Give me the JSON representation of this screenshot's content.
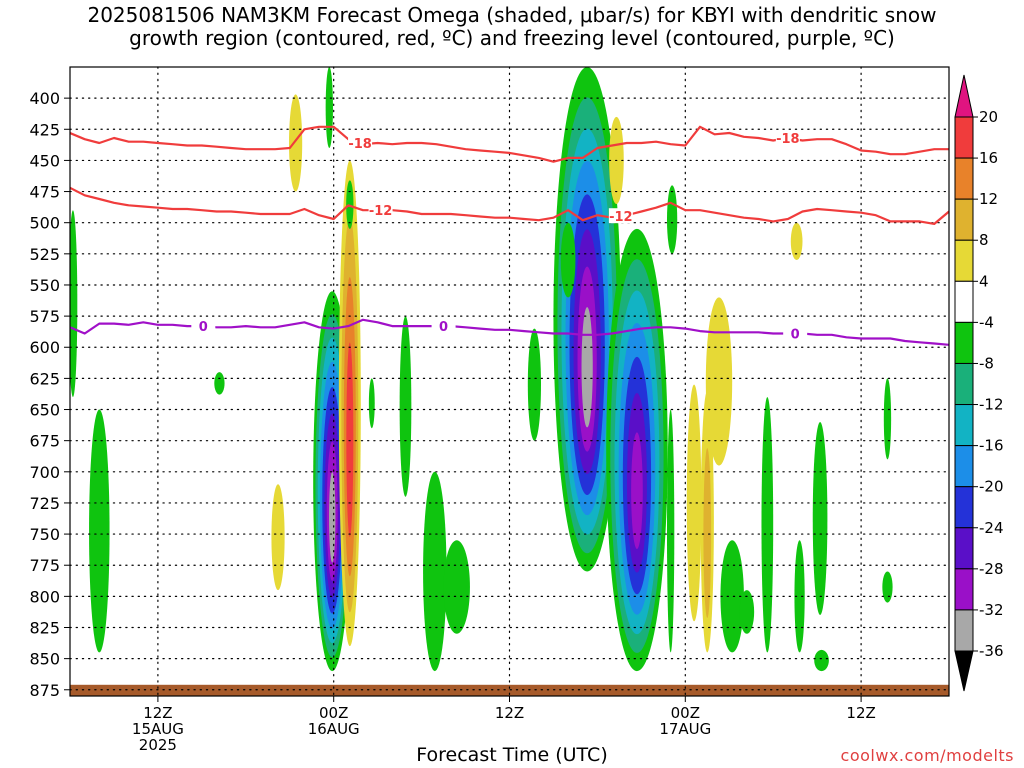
{
  "chart_data": {
    "type": "heatmap",
    "title_lines": [
      "2025081506 NAM3KM Forecast Omega (shaded, μbar/s) for KBYI with dendritic snow",
      "growth region (contoured, red, ºC) and freezing level (contoured, purple, ºC)"
    ],
    "xlabel": "Forecast Time (UTC)",
    "ylabel": "",
    "credit": "coolwx.com/modelts",
    "y_axis": {
      "ticks": [
        400,
        425,
        450,
        475,
        500,
        525,
        550,
        575,
        600,
        625,
        650,
        675,
        700,
        725,
        750,
        775,
        800,
        825,
        850,
        875
      ],
      "range": [
        375,
        880
      ],
      "units": "hPa",
      "reversed": true
    },
    "x_axis": {
      "range_hours": [
        0,
        60
      ],
      "ticks": [
        {
          "hour": 6,
          "lines": [
            "12Z",
            "15AUG",
            "2025"
          ]
        },
        {
          "hour": 18,
          "lines": [
            "00Z",
            "16AUG"
          ]
        },
        {
          "hour": 30,
          "lines": [
            "12Z"
          ]
        },
        {
          "hour": 42,
          "lines": [
            "00Z",
            "17AUG"
          ]
        },
        {
          "hour": 54,
          "lines": [
            "12Z"
          ]
        }
      ]
    },
    "grid": "dotted",
    "colorbar": {
      "labels": [
        "20",
        "16",
        "12",
        "8",
        "4",
        "-4",
        "-8",
        "-12",
        "-16",
        "-20",
        "-24",
        "-28",
        "-32",
        "-36"
      ],
      "bins": [
        {
          "range": [
            16,
            20
          ],
          "color": "#f03c3c"
        },
        {
          "range": [
            12,
            16
          ],
          "color": "#e8822a"
        },
        {
          "range": [
            8,
            12
          ],
          "color": "#dfb22f"
        },
        {
          "range": [
            4,
            8
          ],
          "color": "#e6d936"
        },
        {
          "range": [
            -4,
            4
          ],
          "color": "#ffffff"
        },
        {
          "range": [
            -8,
            -4
          ],
          "color": "#0fc40f"
        },
        {
          "range": [
            -12,
            -8
          ],
          "color": "#1ab07a"
        },
        {
          "range": [
            -16,
            -12
          ],
          "color": "#12b3c4"
        },
        {
          "range": [
            -20,
            -16
          ],
          "color": "#1c8ee8"
        },
        {
          "range": [
            -24,
            -20
          ],
          "color": "#2432d8"
        },
        {
          "range": [
            -28,
            -24
          ],
          "color": "#5a0fc8"
        },
        {
          "range": [
            -32,
            -28
          ],
          "color": "#9a10c8"
        },
        {
          "range": [
            -36,
            -32
          ],
          "color": "#a8a8a8"
        }
      ],
      "top_arrow_color": "#e01480",
      "bottom_arrow_color": "#000000"
    },
    "series": [
      {
        "name": "-18",
        "color": "#f03c3c",
        "label_hours": [
          19.8,
          49.0
        ],
        "points": [
          [
            0,
            428
          ],
          [
            1,
            433
          ],
          [
            2,
            436
          ],
          [
            3,
            432
          ],
          [
            4,
            435
          ],
          [
            5,
            435
          ],
          [
            6,
            436
          ],
          [
            7,
            437
          ],
          [
            8,
            438
          ],
          [
            9,
            438
          ],
          [
            10,
            439
          ],
          [
            11,
            440
          ],
          [
            12,
            441
          ],
          [
            13,
            441
          ],
          [
            14,
            441
          ],
          [
            15,
            440
          ],
          [
            16,
            425
          ],
          [
            17,
            423
          ],
          [
            18,
            423
          ],
          [
            19,
            433
          ],
          [
            20,
            437
          ],
          [
            21,
            436
          ],
          [
            22,
            437
          ],
          [
            23,
            436
          ],
          [
            24,
            436
          ],
          [
            25,
            437
          ],
          [
            26,
            439
          ],
          [
            27,
            441
          ],
          [
            28,
            442
          ],
          [
            29,
            443
          ],
          [
            30,
            444
          ],
          [
            31,
            446
          ],
          [
            32,
            448
          ],
          [
            33,
            451
          ],
          [
            34,
            448
          ],
          [
            35,
            448
          ],
          [
            36,
            440
          ],
          [
            37,
            438
          ],
          [
            38,
            436
          ],
          [
            39,
            436
          ],
          [
            40,
            435
          ],
          [
            41,
            437
          ],
          [
            42,
            438
          ],
          [
            43,
            423
          ],
          [
            44,
            429
          ],
          [
            45,
            428
          ],
          [
            46,
            431
          ],
          [
            47,
            432
          ],
          [
            48,
            434
          ],
          [
            49,
            432
          ],
          [
            50,
            434
          ],
          [
            51,
            433
          ],
          [
            52,
            433
          ],
          [
            53,
            437
          ],
          [
            54,
            442
          ],
          [
            55,
            443
          ],
          [
            56,
            445
          ],
          [
            57,
            445
          ],
          [
            58,
            443
          ],
          [
            59,
            441
          ],
          [
            60,
            441
          ]
        ]
      },
      {
        "name": "-12",
        "color": "#f03c3c",
        "label_hours": [
          21.2,
          37.6
        ],
        "points": [
          [
            0,
            472
          ],
          [
            1,
            478
          ],
          [
            2,
            481
          ],
          [
            3,
            484
          ],
          [
            4,
            486
          ],
          [
            5,
            487
          ],
          [
            6,
            488
          ],
          [
            7,
            489
          ],
          [
            8,
            489
          ],
          [
            9,
            490
          ],
          [
            10,
            491
          ],
          [
            11,
            491
          ],
          [
            12,
            492
          ],
          [
            13,
            493
          ],
          [
            14,
            493
          ],
          [
            15,
            493
          ],
          [
            16,
            489
          ],
          [
            17,
            494
          ],
          [
            18,
            497
          ],
          [
            19,
            486
          ],
          [
            20,
            490
          ],
          [
            21,
            490
          ],
          [
            22,
            490
          ],
          [
            23,
            491
          ],
          [
            24,
            493
          ],
          [
            25,
            493
          ],
          [
            26,
            493
          ],
          [
            27,
            494
          ],
          [
            28,
            495
          ],
          [
            29,
            496
          ],
          [
            30,
            496
          ],
          [
            31,
            497
          ],
          [
            32,
            498
          ],
          [
            33,
            496
          ],
          [
            34,
            490
          ],
          [
            35,
            498
          ],
          [
            36,
            494
          ],
          [
            37,
            496
          ],
          [
            38,
            494
          ],
          [
            39,
            491
          ],
          [
            40,
            488
          ],
          [
            41,
            484
          ],
          [
            42,
            490
          ],
          [
            43,
            490
          ],
          [
            44,
            492
          ],
          [
            45,
            494
          ],
          [
            46,
            496
          ],
          [
            47,
            497
          ],
          [
            48,
            499
          ],
          [
            49,
            497
          ],
          [
            50,
            491
          ],
          [
            51,
            489
          ],
          [
            52,
            490
          ],
          [
            53,
            491
          ],
          [
            54,
            492
          ],
          [
            55,
            494
          ],
          [
            56,
            499
          ],
          [
            57,
            499
          ],
          [
            58,
            499
          ],
          [
            59,
            501
          ],
          [
            60,
            491
          ]
        ]
      },
      {
        "name": "0",
        "color": "#a010c8",
        "label_hours": [
          9.1,
          25.5,
          49.5
        ],
        "points": [
          [
            0,
            584
          ],
          [
            1,
            589
          ],
          [
            2,
            581
          ],
          [
            3,
            581
          ],
          [
            4,
            582
          ],
          [
            5,
            580
          ],
          [
            6,
            582
          ],
          [
            7,
            582
          ],
          [
            8,
            583
          ],
          [
            9,
            583
          ],
          [
            10,
            584
          ],
          [
            11,
            584
          ],
          [
            12,
            583
          ],
          [
            13,
            584
          ],
          [
            14,
            584
          ],
          [
            15,
            582
          ],
          [
            16,
            580
          ],
          [
            17,
            584
          ],
          [
            18,
            585
          ],
          [
            19,
            583
          ],
          [
            20,
            578
          ],
          [
            21,
            580
          ],
          [
            22,
            583
          ],
          [
            23,
            583
          ],
          [
            24,
            583
          ],
          [
            25,
            583
          ],
          [
            26,
            583
          ],
          [
            27,
            584
          ],
          [
            28,
            585
          ],
          [
            29,
            586
          ],
          [
            30,
            586
          ],
          [
            31,
            587
          ],
          [
            32,
            588
          ],
          [
            33,
            589
          ],
          [
            34,
            589
          ],
          [
            35,
            590
          ],
          [
            36,
            590
          ],
          [
            37,
            589
          ],
          [
            38,
            587
          ],
          [
            39,
            585
          ],
          [
            40,
            584
          ],
          [
            41,
            584
          ],
          [
            42,
            585
          ],
          [
            43,
            587
          ],
          [
            44,
            588
          ],
          [
            45,
            588
          ],
          [
            46,
            588
          ],
          [
            47,
            588
          ],
          [
            48,
            589
          ],
          [
            49,
            589
          ],
          [
            50,
            589
          ],
          [
            51,
            590
          ],
          [
            52,
            590
          ],
          [
            53,
            592
          ],
          [
            54,
            593
          ],
          [
            55,
            593
          ],
          [
            56,
            593
          ],
          [
            57,
            595
          ],
          [
            58,
            596
          ],
          [
            59,
            597
          ],
          [
            60,
            598
          ]
        ]
      }
    ],
    "omega_features": [
      {
        "hour": 15.4,
        "top": 397,
        "bottom": 475,
        "half_width_h": 0.45,
        "min": 6
      },
      {
        "hour": 17.7,
        "top": 375,
        "bottom": 440,
        "half_width_h": 0.25,
        "min": -6
      },
      {
        "hour": 17.9,
        "top": 555,
        "bottom": 860,
        "half_width_h": 1.3,
        "min": -36
      },
      {
        "hour": 19.1,
        "top": 450,
        "bottom": 840,
        "half_width_h": 0.75,
        "min": 20
      },
      {
        "hour": 19.1,
        "top": 466,
        "bottom": 505,
        "half_width_h": 0.25,
        "min": -6
      },
      {
        "hour": 14.2,
        "top": 710,
        "bottom": 795,
        "half_width_h": 0.45,
        "min": 6
      },
      {
        "hour": 10.2,
        "top": 620,
        "bottom": 638,
        "half_width_h": 0.35,
        "min": -6
      },
      {
        "hour": 2.0,
        "top": 650,
        "bottom": 845,
        "half_width_h": 0.7,
        "min": -6
      },
      {
        "hour": 0.2,
        "top": 490,
        "bottom": 640,
        "half_width_h": 0.3,
        "min": -6
      },
      {
        "hour": 22.9,
        "top": 575,
        "bottom": 720,
        "half_width_h": 0.4,
        "min": -6
      },
      {
        "hour": 24.9,
        "top": 700,
        "bottom": 860,
        "half_width_h": 0.8,
        "min": -6
      },
      {
        "hour": 26.4,
        "top": 755,
        "bottom": 830,
        "half_width_h": 0.9,
        "min": -6
      },
      {
        "hour": 20.6,
        "top": 625,
        "bottom": 665,
        "half_width_h": 0.2,
        "min": -6
      },
      {
        "hour": 35.3,
        "top": 375,
        "bottom": 780,
        "half_width_h": 2.3,
        "min": -36
      },
      {
        "hour": 38.7,
        "top": 505,
        "bottom": 860,
        "half_width_h": 2.1,
        "min": -30
      },
      {
        "hour": 37.3,
        "top": 415,
        "bottom": 485,
        "half_width_h": 0.5,
        "min": 6
      },
      {
        "hour": 31.7,
        "top": 585,
        "bottom": 675,
        "half_width_h": 0.45,
        "min": -6
      },
      {
        "hour": 41.1,
        "top": 470,
        "bottom": 525,
        "half_width_h": 0.35,
        "min": -6
      },
      {
        "hour": 44.3,
        "top": 560,
        "bottom": 695,
        "half_width_h": 0.9,
        "min": 6
      },
      {
        "hour": 42.6,
        "top": 630,
        "bottom": 820,
        "half_width_h": 0.5,
        "min": 6
      },
      {
        "hour": 43.5,
        "top": 635,
        "bottom": 845,
        "half_width_h": 0.45,
        "min": 12
      },
      {
        "hour": 41.0,
        "top": 650,
        "bottom": 845,
        "half_width_h": 0.25,
        "min": -6
      },
      {
        "hour": 45.2,
        "top": 755,
        "bottom": 845,
        "half_width_h": 0.8,
        "min": -6
      },
      {
        "hour": 47.6,
        "top": 640,
        "bottom": 845,
        "half_width_h": 0.4,
        "min": -6
      },
      {
        "hour": 46.2,
        "top": 795,
        "bottom": 830,
        "half_width_h": 0.5,
        "min": -6
      },
      {
        "hour": 49.8,
        "top": 755,
        "bottom": 845,
        "half_width_h": 0.35,
        "min": -6
      },
      {
        "hour": 51.2,
        "top": 660,
        "bottom": 815,
        "half_width_h": 0.5,
        "min": -6
      },
      {
        "hour": 51.3,
        "top": 843,
        "bottom": 860,
        "half_width_h": 0.5,
        "min": -6
      },
      {
        "hour": 55.8,
        "top": 625,
        "bottom": 690,
        "half_width_h": 0.25,
        "min": -6
      },
      {
        "hour": 55.8,
        "top": 780,
        "bottom": 805,
        "half_width_h": 0.35,
        "min": -6
      },
      {
        "hour": 49.6,
        "top": 500,
        "bottom": 530,
        "half_width_h": 0.4,
        "min": 6
      },
      {
        "hour": 34.0,
        "top": 500,
        "bottom": 560,
        "half_width_h": 0.5,
        "min": -6
      }
    ],
    "ground_color": "#a65a2a"
  }
}
